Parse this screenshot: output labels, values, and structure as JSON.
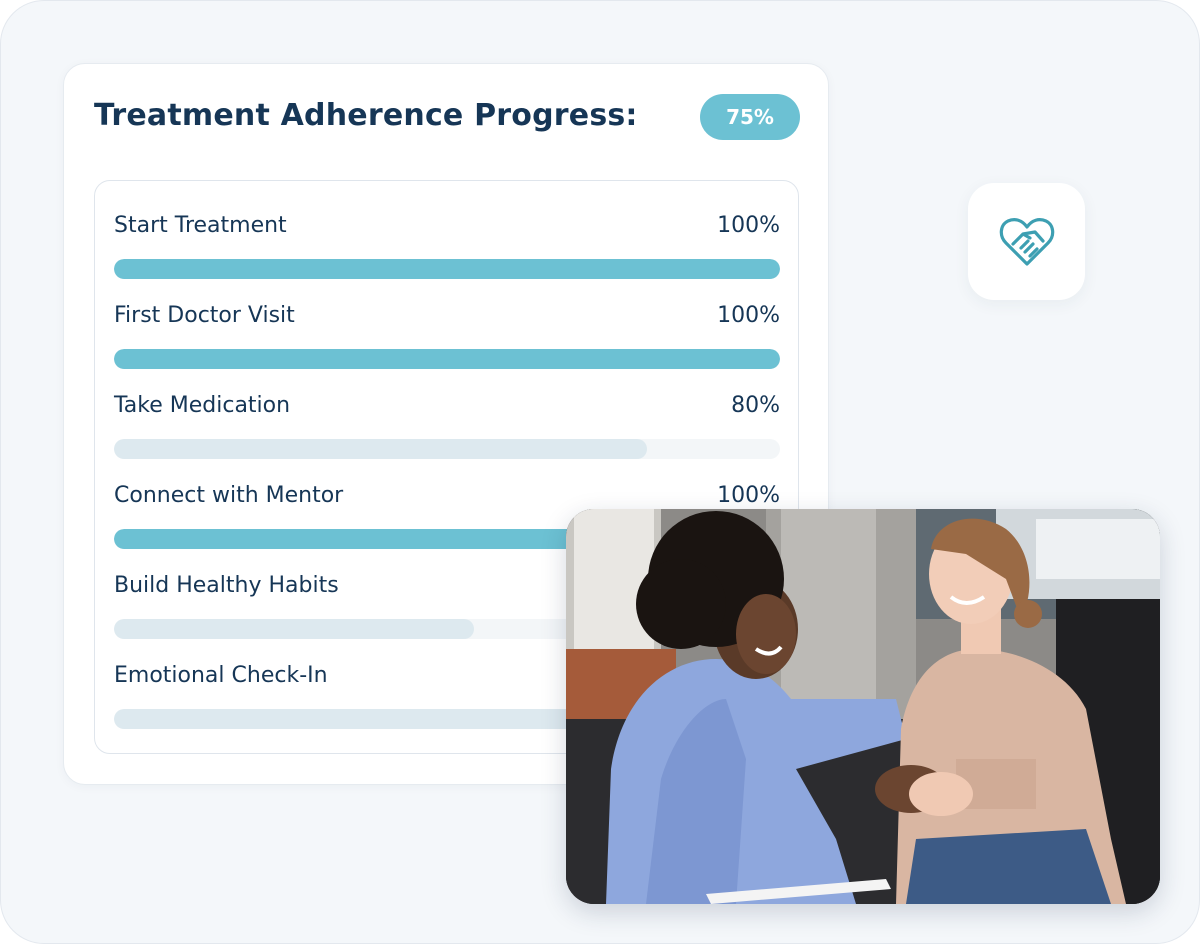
{
  "card": {
    "title": "Treatment Adherence Progress:",
    "overall_badge": "75%"
  },
  "steps": [
    {
      "label": "Start Treatment",
      "value": "100%",
      "progress": 1.0,
      "complete": true
    },
    {
      "label": "First Doctor Visit",
      "value": "100%",
      "progress": 1.0,
      "complete": true
    },
    {
      "label": "Take Medication",
      "value": "80%",
      "progress": 0.8,
      "complete": false
    },
    {
      "label": "Connect with Mentor",
      "value": "100%",
      "progress": 1.0,
      "complete": true
    },
    {
      "label": "Build Healthy Habits",
      "value": "",
      "progress": 0.54,
      "complete": false
    },
    {
      "label": "Emotional Check-In",
      "value": "",
      "progress": 0.7,
      "complete": false
    }
  ],
  "icons": {
    "tile": "heart-handshake-icon"
  },
  "colors": {
    "accent": "#6cc1d3",
    "title": "#163656",
    "partial_fill": "#dde9ef",
    "track": "#f3f6f8"
  },
  "photo": {
    "subject": "two-women-holding-hands-photo"
  }
}
